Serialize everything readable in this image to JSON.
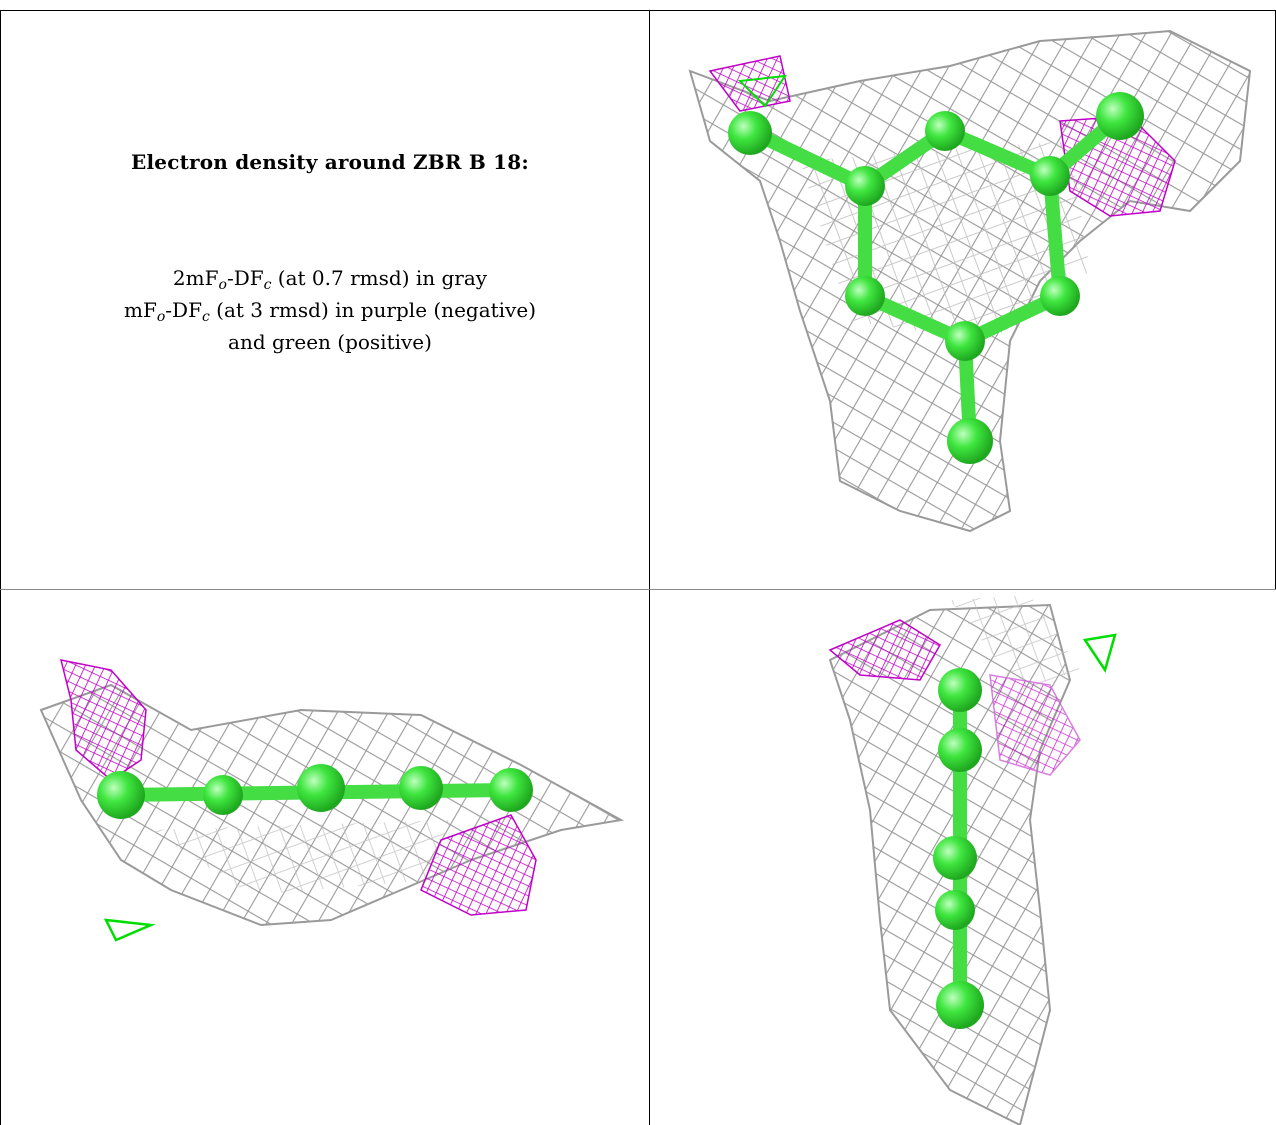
{
  "caption": {
    "title": "Electron density around ZBR B 18:",
    "line1_pre": "2mF",
    "line1_sub1": "o",
    "line1_mid": "-DF",
    "line1_sub2": "c",
    "line1_post": " (at 0.7 rmsd) in gray",
    "line2_pre": "mF",
    "line2_sub1": "o",
    "line2_mid": "-DF",
    "line2_sub2": "c",
    "line2_post": " (at 3 rmsd) in purple (negative)",
    "line3": "and green (positive)"
  },
  "colors": {
    "mesh_2fofc": "#a8a8a8",
    "mesh_negative": "#cc00cc",
    "mesh_positive": "#00dd00",
    "ligand": "#44ee44",
    "border": "#000000"
  },
  "panels": [
    {
      "name": "top-right-view",
      "content": "ligand with density mesh, face-on"
    },
    {
      "name": "bottom-left-view",
      "content": "ligand with density mesh, edge-on"
    },
    {
      "name": "bottom-right-view",
      "content": "ligand with density mesh, vertical edge-on"
    }
  ]
}
